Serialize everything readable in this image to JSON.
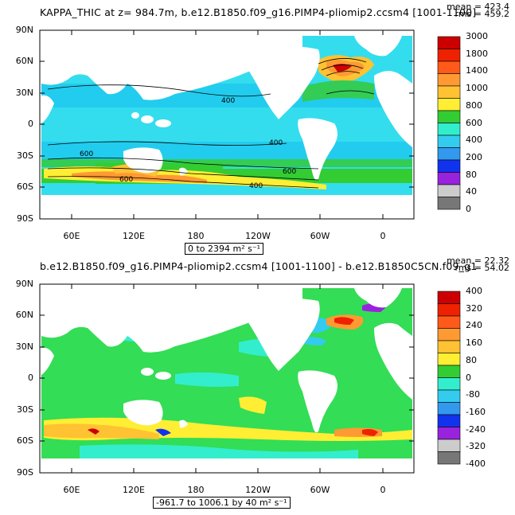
{
  "panel_top": {
    "title": "KAPPA_THIC at z=  984.7m, b.e12.B1850.f09_g16.PIMP4-pliomip2.ccsm4 [1001-1100]",
    "mean_label": "mean = 423.4",
    "rms_label": "rms = 459.2",
    "range_label": "0 to 2394 m² s⁻¹",
    "colorbar_labels": [
      "3000",
      "1800",
      "1400",
      "1000",
      "800",
      "600",
      "400",
      "200",
      "80",
      "40",
      "0"
    ],
    "colorbar_colors": [
      "#cc0000",
      "#ee2200",
      "#ff5a1a",
      "#ff9a33",
      "#ffc233",
      "#ffee33",
      "#33cc33",
      "#33eecc",
      "#33ccee",
      "#3399ee",
      "#1133ee",
      "#9922dd",
      "#cccccc",
      "#777777"
    ],
    "contour_labels": [
      "400",
      "400",
      "600",
      "600",
      "400",
      "600"
    ]
  },
  "panel_bottom": {
    "title": "b.e12.B1850.f09_g16.PIMP4-pliomip2.ccsm4 [1001-1100] - b.e12.B1850C5CN.f09_g1",
    "mean_label": "mean = 22.32",
    "rms_label": "rms = 54.02",
    "range_label": "-961.7 to 1006.1 by 40 m² s⁻¹",
    "colorbar_labels": [
      "400",
      "320",
      "240",
      "160",
      "80",
      "0",
      "-80",
      "-160",
      "-240",
      "-320",
      "-400"
    ],
    "colorbar_colors": [
      "#cc0000",
      "#ee2200",
      "#ff5a1a",
      "#ff9a33",
      "#ffc233",
      "#ffee33",
      "#33cc33",
      "#33eecc",
      "#33ccee",
      "#3399ee",
      "#1133ee",
      "#9922dd",
      "#cccccc",
      "#777777"
    ]
  },
  "axes": {
    "lat_labels": [
      "90N",
      "60N",
      "30N",
      "0",
      "30S",
      "60S",
      "90S"
    ],
    "lon_labels": [
      "60E",
      "120E",
      "180",
      "120W",
      "60W",
      "0"
    ]
  },
  "colors": {
    "ocean_base": "#33ddee",
    "ocean_mid": "#22ccee",
    "diff_base": "#33dd55",
    "land": "#ffffff",
    "frame": "#000000"
  }
}
